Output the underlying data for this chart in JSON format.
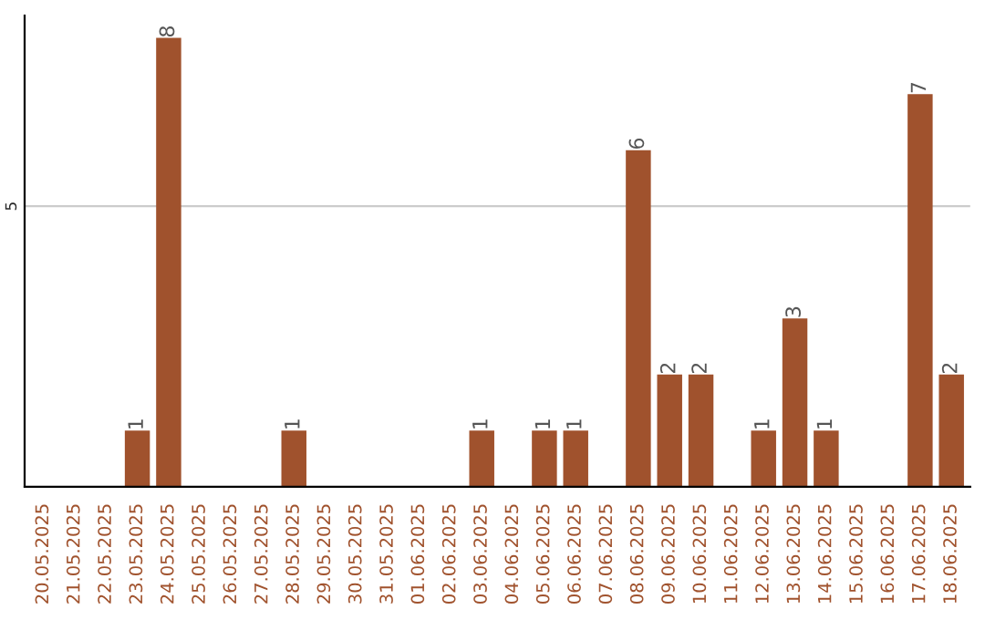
{
  "chart_data": {
    "type": "bar",
    "categories": [
      "20.05.2025",
      "21.05.2025",
      "22.05.2025",
      "23.05.2025",
      "24.05.2025",
      "25.05.2025",
      "26.05.2025",
      "27.05.2025",
      "28.05.2025",
      "29.05.2025",
      "30.05.2025",
      "31.05.2025",
      "01.06.2025",
      "02.06.2025",
      "03.06.2025",
      "04.06.2025",
      "05.06.2025",
      "06.06.2025",
      "07.06.2025",
      "08.06.2025",
      "09.06.2025",
      "10.06.2025",
      "11.06.2025",
      "12.06.2025",
      "13.06.2025",
      "14.06.2025",
      "15.06.2025",
      "16.06.2025",
      "17.06.2025",
      "18.06.2025"
    ],
    "values": [
      0,
      0,
      0,
      1,
      8,
      0,
      0,
      0,
      1,
      0,
      0,
      0,
      0,
      0,
      1,
      0,
      1,
      1,
      0,
      6,
      2,
      2,
      0,
      1,
      3,
      1,
      0,
      0,
      7,
      2
    ],
    "value_labels": [
      null,
      null,
      null,
      "1",
      "8",
      null,
      null,
      null,
      "1",
      null,
      null,
      null,
      null,
      null,
      "1",
      null,
      "1",
      "1",
      null,
      "6",
      "2",
      "2",
      null,
      "1",
      "3",
      "1",
      null,
      null,
      "7",
      "2"
    ],
    "color": "#a0522d",
    "ylim": [
      0,
      8.4
    ],
    "yticks": [
      5
    ],
    "grid": "y"
  }
}
